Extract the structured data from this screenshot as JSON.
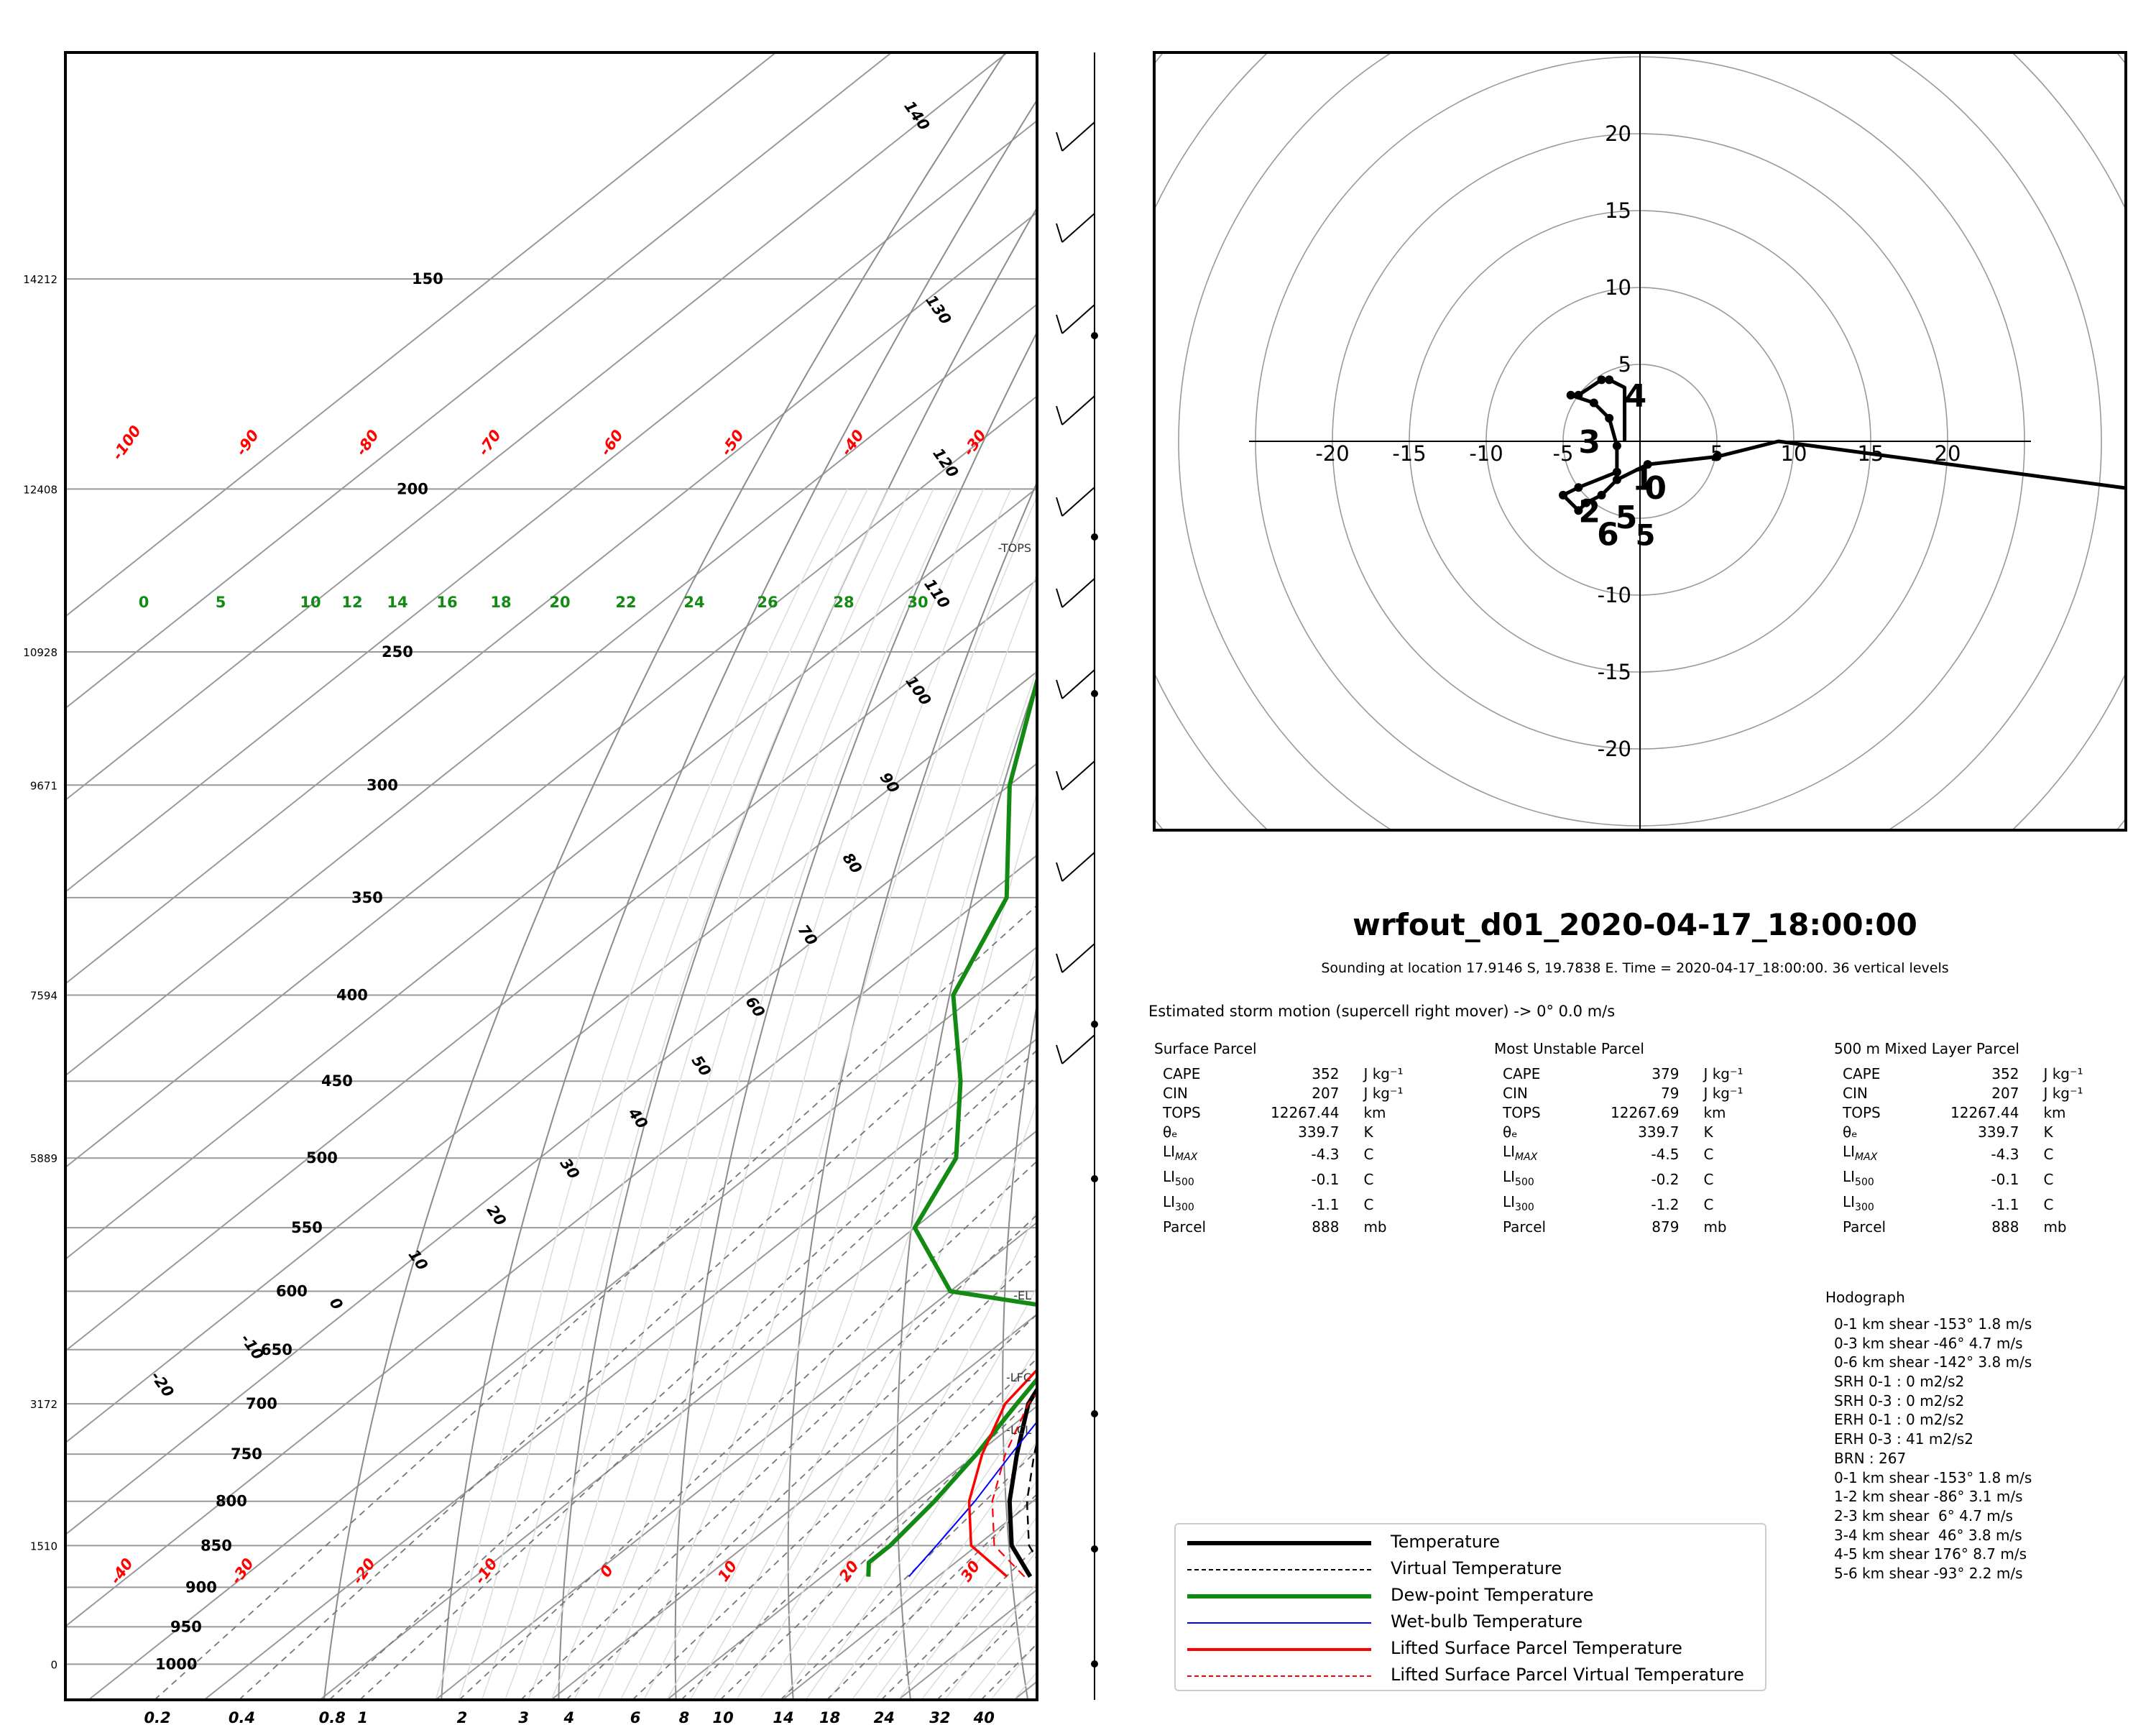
{
  "title": "wrfout_d01_2020-04-17_18:00:00",
  "subtitle": "Sounding at location 17.9146 S, 19.7838 E. Time = 2020-04-17_18:00:00. 36 vertical levels",
  "storm_motion": "Estimated storm motion (supercell right mover) ->   0° 0.0 m/s",
  "parcels": [
    {
      "title": "Surface Parcel",
      "rows": [
        [
          "CAPE",
          "352",
          "J kg⁻¹"
        ],
        [
          "CIN",
          "207",
          "J kg⁻¹"
        ],
        [
          "TOPS",
          "12267.44",
          "km"
        ],
        [
          "θₑ",
          "339.7",
          "K"
        ],
        [
          "LIMAX",
          "-4.3",
          "C"
        ],
        [
          "LI500",
          "-0.1",
          "C"
        ],
        [
          "LI300",
          "-1.1",
          "C"
        ],
        [
          "Parcel",
          "888",
          "mb"
        ]
      ]
    },
    {
      "title": "Most Unstable Parcel",
      "rows": [
        [
          "CAPE",
          "379",
          "J kg⁻¹"
        ],
        [
          "CIN",
          "79",
          "J kg⁻¹"
        ],
        [
          "TOPS",
          "12267.69",
          "km"
        ],
        [
          "θₑ",
          "339.7",
          "K"
        ],
        [
          "LIMAX",
          "-4.5",
          "C"
        ],
        [
          "LI500",
          "-0.2",
          "C"
        ],
        [
          "LI300",
          "-1.2",
          "C"
        ],
        [
          "Parcel",
          "879",
          "mb"
        ]
      ]
    },
    {
      "title": "500 m Mixed Layer Parcel",
      "rows": [
        [
          "CAPE",
          "352",
          "J kg⁻¹"
        ],
        [
          "CIN",
          "207",
          "J kg⁻¹"
        ],
        [
          "TOPS",
          "12267.44",
          "km"
        ],
        [
          "θₑ",
          "339.7",
          "K"
        ],
        [
          "LIMAX",
          "-4.3",
          "C"
        ],
        [
          "LI500",
          "-0.1",
          "C"
        ],
        [
          "LI300",
          "-1.1",
          "C"
        ],
        [
          "Parcel",
          "888",
          "mb"
        ]
      ]
    }
  ],
  "hodograph_stats": {
    "title": "Hodograph",
    "lines": [
      "0-1 km shear -153° 1.8 m/s",
      "0-3 km shear -46° 4.7 m/s",
      "0-6 km shear -142° 3.8 m/s",
      "SRH 0-1 : 0 m2/s2",
      "SRH 0-3 : 0 m2/s2",
      "ERH 0-1 : 0 m2/s2",
      "ERH 0-3 : 41 m2/s2",
      "BRN : 267",
      "0-1 km shear -153° 1.8 m/s",
      "1-2 km shear -86° 3.1 m/s",
      "2-3 km shear  6° 4.7 m/s",
      "3-4 km shear  46° 3.8 m/s",
      "4-5 km shear 176° 8.7 m/s",
      "5-6 km shear -93° 2.2 m/s"
    ]
  },
  "legend": [
    {
      "label": "Temperature",
      "color": "#000000",
      "style": "solid-thick"
    },
    {
      "label": "Virtual Temperature",
      "color": "#000000",
      "style": "dashed"
    },
    {
      "label": "Dew-point Temperature",
      "color": "#138a13",
      "style": "solid-thick"
    },
    {
      "label": "Wet-bulb Temperature",
      "color": "#0000ff",
      "style": "solid-thin"
    },
    {
      "label": "Lifted Surface Parcel Temperature",
      "color": "#ff0000",
      "style": "solid"
    },
    {
      "label": "Lifted Surface Parcel Virtual Temperature",
      "color": "#ff0000",
      "style": "dashed"
    }
  ],
  "chart_data": [
    {
      "type": "line",
      "kind": "skew-T log-p",
      "pressure_levels": [
        1000,
        950,
        900,
        850,
        800,
        750,
        700,
        650,
        600,
        550,
        500,
        450,
        400,
        350,
        300,
        250,
        200,
        150
      ],
      "pressure_labels": [
        "1000",
        "950",
        "900",
        "850",
        "800",
        "750",
        "700",
        "650",
        "600",
        "550",
        "500",
        "450",
        "400",
        "350",
        "300",
        "250",
        "200",
        "150"
      ],
      "height_labels": [
        {
          "p": 1000,
          "h": "0"
        },
        {
          "p": 850,
          "h": "1510"
        },
        {
          "p": 700,
          "h": "3172"
        },
        {
          "p": 500,
          "h": "5889"
        },
        {
          "p": 400,
          "h": "7594"
        },
        {
          "p": 300,
          "h": "9671"
        },
        {
          "p": 250,
          "h": "10928"
        },
        {
          "p": 200,
          "h": "12408"
        },
        {
          "p": 150,
          "h": "14212"
        }
      ],
      "pressure_range": [
        1050,
        110
      ],
      "temperature_range": [
        -42,
        42
      ],
      "mixing_ratio_labels": [
        "0.2",
        "0.4",
        "0.8",
        "1",
        "2",
        "3",
        "4",
        "6",
        "8",
        "10",
        "14",
        "18",
        "24",
        "32",
        "40"
      ],
      "theta_e_labels": [
        "0",
        "5",
        "10",
        "12",
        "14",
        "16",
        "18",
        "20",
        "22",
        "24",
        "26",
        "28",
        "30"
      ],
      "red_temperature_labels": [
        "-100",
        "-90",
        "-80",
        "-70",
        "-60",
        "-50",
        "-40",
        "-30",
        "-40",
        "-30",
        "-20",
        "-10",
        "0",
        "10",
        "20",
        "30"
      ],
      "black_temperature_labels": [
        "-20",
        "-10",
        "0",
        "10",
        "20",
        "30",
        "40",
        "50",
        "60",
        "70",
        "80",
        "90",
        "100",
        "110",
        "120",
        "130",
        "140"
      ],
      "level_markers": [
        "TOPS",
        "EL",
        "LFC",
        "LCL"
      ],
      "series": [
        {
          "name": "Temperature",
          "points": [
            [
              887,
              28
            ],
            [
              850,
              23
            ],
            [
              800,
              18
            ],
            [
              750,
              13.5
            ],
            [
              700,
              9
            ],
            [
              650,
              6
            ],
            [
              620,
              6
            ],
            [
              600,
              9.5
            ],
            [
              550,
              5.5
            ],
            [
              500,
              -1.5
            ],
            [
              450,
              -8.5
            ],
            [
              400,
              -16
            ],
            [
              350,
              -25
            ],
            [
              300,
              -34
            ],
            [
              250,
              -43
            ],
            [
              200,
              -55
            ],
            [
              160,
              -67
            ],
            [
              140,
              -73
            ],
            [
              120,
              -78
            ],
            [
              113,
              -79
            ]
          ]
        },
        {
          "name": "Virtual Temperature",
          "points": [
            [
              887,
              29.5
            ],
            [
              850,
              24.5
            ],
            [
              800,
              19.5
            ],
            [
              750,
              15
            ],
            [
              700,
              10.5
            ],
            [
              650,
              7
            ],
            [
              620,
              6.5
            ]
          ]
        },
        {
          "name": "Dew-point Temperature",
          "points": [
            [
              887,
              14
            ],
            [
              870,
              12.5
            ],
            [
              850,
              12.5
            ],
            [
              800,
              11.5
            ],
            [
              750,
              10
            ],
            [
              700,
              8
            ],
            [
              650,
              6
            ],
            [
              620,
              6
            ],
            [
              600,
              -10
            ],
            [
              550,
              -20
            ],
            [
              500,
              -24
            ],
            [
              450,
              -32
            ],
            [
              400,
              -42
            ],
            [
              350,
              -48
            ],
            [
              300,
              -60
            ],
            [
              260,
              -69
            ],
            [
              225,
              -66
            ],
            [
              180,
              -69
            ],
            [
              150,
              -73
            ],
            [
              130,
              -79
            ],
            [
              113,
              -84
            ]
          ]
        },
        {
          "name": "Wet-bulb Temperature",
          "points": [
            [
              887,
              17.5
            ],
            [
              850,
              16.5
            ],
            [
              800,
              15
            ],
            [
              750,
              13
            ],
            [
              700,
              11
            ],
            [
              650,
              8
            ],
            [
              620,
              6
            ],
            [
              600,
              3
            ],
            [
              560,
              -1
            ],
            [
              500,
              -12
            ],
            [
              450,
              -21
            ],
            [
              400,
              -31
            ],
            [
              350,
              -44
            ],
            [
              300,
              -53
            ],
            [
              250,
              -60
            ],
            [
              200,
              -66
            ]
          ]
        },
        {
          "name": "Lifted Surface Parcel Temperature",
          "points": [
            [
              887,
              26
            ],
            [
              850,
              19.5
            ],
            [
              800,
              14.5
            ],
            [
              750,
              10.5
            ],
            [
              700,
              7
            ],
            [
              650,
              5.5
            ],
            [
              600,
              4
            ],
            [
              550,
              1
            ],
            [
              500,
              -4
            ],
            [
              450,
              -10
            ],
            [
              400,
              -17
            ],
            [
              350,
              -26
            ],
            [
              300,
              -36
            ],
            [
              250,
              -48
            ],
            [
              200,
              -62
            ],
            [
              150,
              -80
            ],
            [
              113,
              -90
            ]
          ]
        },
        {
          "name": "Lifted Surface Parcel Virtual Temperature",
          "points": [
            [
              887,
              27.5
            ],
            [
              850,
              21.5
            ],
            [
              800,
              16.5
            ],
            [
              750,
              12.5
            ],
            [
              700,
              9
            ],
            [
              650,
              7
            ],
            [
              600,
              5.5
            ],
            [
              550,
              2.5
            ],
            [
              500,
              -3
            ],
            [
              450,
              -9
            ],
            [
              400,
              -16
            ],
            [
              350,
              -25.5
            ]
          ]
        }
      ]
    },
    {
      "type": "line",
      "kind": "hodograph",
      "xlim": [
        -25,
        25
      ],
      "ylim": [
        -25,
        25
      ],
      "rings": [
        5,
        10,
        15,
        20,
        25,
        30,
        35,
        40
      ],
      "x_tick_labels": [
        "-20",
        "-15",
        "-10",
        "-5",
        "5",
        "10",
        "15",
        "20"
      ],
      "y_tick_labels": [
        "20",
        "15",
        "10",
        "5",
        "-10",
        "-15",
        "-20"
      ],
      "points": [
        [
          35,
          -3.5
        ],
        [
          9,
          0
        ],
        [
          5,
          -1
        ],
        [
          0.5,
          -1.5
        ],
        [
          -1.5,
          -2.5
        ],
        [
          -2.5,
          -3.5
        ],
        [
          -3.5,
          -4
        ],
        [
          -4,
          -4.5
        ],
        [
          -5,
          -3.5
        ],
        [
          -4,
          -3
        ],
        [
          -1.5,
          -2
        ],
        [
          -1.5,
          -0.3
        ],
        [
          -2,
          1.5
        ],
        [
          -3,
          2.5
        ],
        [
          -4.5,
          3
        ],
        [
          -4,
          3
        ],
        [
          -2.5,
          4
        ],
        [
          -2,
          4
        ],
        [
          -1,
          3.5
        ],
        [
          -1,
          0
        ]
      ],
      "height_labels": [
        {
          "label": "0",
          "u": 0.3,
          "v": -3
        },
        {
          "label": "1",
          "u": -0.5,
          "v": -2.4
        },
        {
          "label": "2",
          "u": -4,
          "v": -4.5
        },
        {
          "label": "3",
          "u": -4,
          "v": 0
        },
        {
          "label": "4",
          "u": -1,
          "v": 3
        },
        {
          "label": "5",
          "u": -0.3,
          "v": -6
        },
        {
          "label": "6",
          "u": -2.8,
          "v": -6
        },
        {
          "label": "5",
          "u": -1.6,
          "v": -4.9
        }
      ]
    }
  ]
}
